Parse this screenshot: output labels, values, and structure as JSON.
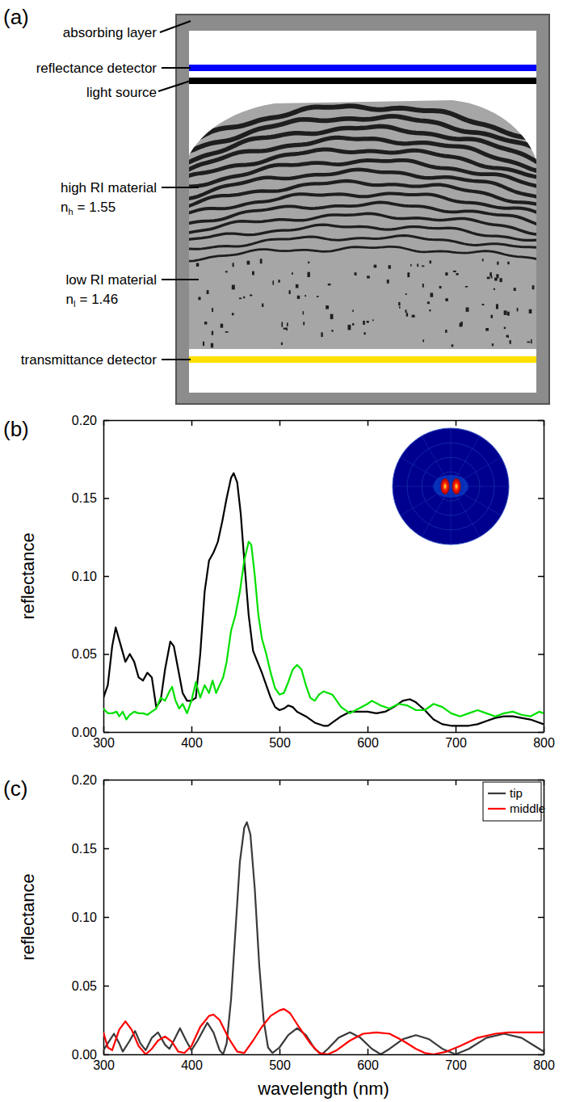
{
  "diagram": {
    "panel_label": "(a)",
    "labels": [
      {
        "text": "absorbing layer"
      },
      {
        "text": "reflectance detector"
      },
      {
        "text": "light source"
      },
      {
        "text": "high RI material",
        "formula": {
          "symbol": "n",
          "subscript": "h",
          "rest": "= 1.55"
        }
      },
      {
        "text": "low RI material",
        "formula": {
          "symbol": "n",
          "subscript": "l",
          "rest": "= 1.46"
        }
      },
      {
        "text": "transmittance detector"
      }
    ]
  },
  "chart_data": [
    {
      "type": "line",
      "panel_label": "(b)",
      "y_label": "reflectance",
      "xlim": [
        300,
        800
      ],
      "xticks": [
        300,
        400,
        500,
        600,
        700,
        800
      ],
      "ylim": [
        0,
        0.2
      ],
      "yticks": [
        {
          "value": 0,
          "label": "0.00"
        },
        {
          "value": 0.05,
          "label": "0.05"
        },
        {
          "value": 0.1,
          "label": "0.10"
        },
        {
          "value": 0.15,
          "label": "0.15"
        },
        {
          "value": 0.2,
          "label": "0.20"
        }
      ],
      "grid": false,
      "series": [
        {
          "color": "#000000",
          "x": [
            300,
            305,
            310,
            314,
            320,
            325,
            330,
            335,
            340,
            345,
            350,
            355,
            360,
            365,
            370,
            376,
            380,
            385,
            390,
            395,
            400,
            405,
            410,
            415,
            420,
            425,
            430,
            435,
            440,
            445,
            448,
            452,
            456,
            460,
            465,
            470,
            475,
            480,
            485,
            490,
            495,
            500,
            505,
            510,
            515,
            520,
            530,
            540,
            550,
            555,
            560,
            570,
            580,
            590,
            600,
            610,
            620,
            630,
            640,
            648,
            655,
            665,
            675,
            685,
            695,
            705,
            715,
            725,
            735,
            745,
            755,
            765,
            775,
            785,
            800
          ],
          "values": [
            0.022,
            0.03,
            0.055,
            0.067,
            0.055,
            0.045,
            0.05,
            0.045,
            0.035,
            0.033,
            0.038,
            0.035,
            0.016,
            0.02,
            0.04,
            0.058,
            0.055,
            0.04,
            0.025,
            0.02,
            0.02,
            0.022,
            0.05,
            0.09,
            0.11,
            0.115,
            0.122,
            0.135,
            0.15,
            0.163,
            0.166,
            0.16,
            0.14,
            0.11,
            0.075,
            0.052,
            0.045,
            0.038,
            0.03,
            0.022,
            0.016,
            0.014,
            0.015,
            0.017,
            0.016,
            0.013,
            0.01,
            0.006,
            0.004,
            0.004,
            0.006,
            0.01,
            0.013,
            0.013,
            0.013,
            0.012,
            0.013,
            0.016,
            0.02,
            0.021,
            0.019,
            0.014,
            0.008,
            0.005,
            0.004,
            0.004,
            0.004,
            0.005,
            0.007,
            0.009,
            0.01,
            0.01,
            0.009,
            0.008,
            0.005
          ]
        },
        {
          "color": "#00e000",
          "x": [
            300,
            305,
            310,
            315,
            318,
            322,
            326,
            330,
            335,
            340,
            345,
            350,
            355,
            360,
            365,
            370,
            375,
            378,
            382,
            386,
            390,
            395,
            400,
            405,
            410,
            415,
            420,
            424,
            428,
            432,
            436,
            440,
            445,
            450,
            455,
            460,
            465,
            468,
            472,
            476,
            480,
            485,
            490,
            495,
            500,
            505,
            510,
            515,
            520,
            525,
            530,
            535,
            540,
            545,
            550,
            555,
            560,
            570,
            580,
            590,
            600,
            605,
            615,
            625,
            635,
            645,
            655,
            665,
            675,
            685,
            695,
            705,
            715,
            725,
            735,
            745,
            755,
            765,
            775,
            785,
            795,
            800
          ],
          "values": [
            0.015,
            0.012,
            0.012,
            0.013,
            0.01,
            0.013,
            0.008,
            0.011,
            0.013,
            0.012,
            0.012,
            0.011,
            0.013,
            0.015,
            0.022,
            0.02,
            0.026,
            0.029,
            0.02,
            0.015,
            0.018,
            0.012,
            0.02,
            0.032,
            0.022,
            0.03,
            0.025,
            0.033,
            0.025,
            0.03,
            0.035,
            0.045,
            0.065,
            0.075,
            0.09,
            0.11,
            0.122,
            0.12,
            0.1,
            0.075,
            0.06,
            0.05,
            0.038,
            0.028,
            0.024,
            0.025,
            0.032,
            0.04,
            0.043,
            0.04,
            0.03,
            0.022,
            0.02,
            0.024,
            0.026,
            0.025,
            0.024,
            0.016,
            0.012,
            0.015,
            0.018,
            0.02,
            0.017,
            0.015,
            0.018,
            0.017,
            0.014,
            0.014,
            0.018,
            0.016,
            0.012,
            0.01,
            0.012,
            0.014,
            0.012,
            0.01,
            0.012,
            0.013,
            0.011,
            0.01,
            0.013,
            0.012
          ]
        }
      ]
    },
    {
      "type": "line",
      "panel_label": "(c)",
      "y_label": "reflectance",
      "x_label": "wavelength (nm)",
      "xlim": [
        300,
        800
      ],
      "xticks": [
        300,
        400,
        500,
        600,
        700,
        800
      ],
      "ylim": [
        0,
        0.2
      ],
      "yticks": [
        {
          "value": 0,
          "label": "0.00"
        },
        {
          "value": 0.05,
          "label": "0.05"
        },
        {
          "value": 0.1,
          "label": "0.10"
        },
        {
          "value": 0.15,
          "label": "0.15"
        },
        {
          "value": 0.2,
          "label": "0.20"
        }
      ],
      "grid": false,
      "legend": "top-right",
      "series": [
        {
          "name": "tip",
          "color": "#3a3a3a",
          "x": [
            300,
            305,
            312,
            318,
            322,
            330,
            336,
            342,
            348,
            355,
            362,
            370,
            375,
            380,
            387,
            394,
            400,
            407,
            418,
            425,
            432,
            436,
            440,
            445,
            450,
            455,
            460,
            463,
            467,
            472,
            477,
            482,
            487,
            492,
            500,
            510,
            520,
            530,
            540,
            548,
            555,
            567,
            580,
            592,
            605,
            615,
            625,
            640,
            655,
            670,
            685,
            700,
            715,
            735,
            755,
            775,
            790,
            800
          ],
          "values": [
            0.003,
            0.008,
            0.015,
            0.008,
            0.002,
            0.01,
            0.017,
            0.008,
            0.003,
            0.012,
            0.016,
            0.007,
            0.004,
            0.01,
            0.019,
            0.01,
            0.003,
            0.01,
            0.023,
            0.016,
            0.003,
            0.0,
            0.008,
            0.04,
            0.09,
            0.14,
            0.165,
            0.169,
            0.16,
            0.12,
            0.065,
            0.025,
            0.005,
            0.001,
            0.005,
            0.014,
            0.019,
            0.014,
            0.004,
            0.0,
            0.004,
            0.012,
            0.016,
            0.012,
            0.004,
            0.0,
            0.004,
            0.011,
            0.014,
            0.011,
            0.004,
            0.0,
            0.004,
            0.012,
            0.015,
            0.012,
            0.006,
            0.002
          ]
        },
        {
          "name": "middle",
          "color": "#ff0000",
          "x": [
            300,
            305,
            310,
            318,
            325,
            332,
            340,
            348,
            355,
            362,
            370,
            378,
            385,
            392,
            400,
            410,
            420,
            425,
            432,
            442,
            452,
            460,
            470,
            480,
            490,
            500,
            505,
            512,
            522,
            535,
            545,
            555,
            565,
            580,
            595,
            610,
            625,
            640,
            655,
            665,
            675,
            690,
            705,
            725,
            745,
            760,
            775,
            790,
            800
          ],
          "values": [
            0.016,
            0.005,
            0.003,
            0.018,
            0.024,
            0.018,
            0.006,
            0.0,
            0.004,
            0.01,
            0.013,
            0.009,
            0.002,
            0.001,
            0.006,
            0.02,
            0.028,
            0.029,
            0.025,
            0.012,
            0.002,
            0.001,
            0.01,
            0.02,
            0.028,
            0.032,
            0.033,
            0.03,
            0.02,
            0.008,
            0.001,
            0.0,
            0.003,
            0.01,
            0.015,
            0.016,
            0.015,
            0.01,
            0.004,
            0.001,
            0.0,
            0.002,
            0.006,
            0.012,
            0.015,
            0.016,
            0.016,
            0.016,
            0.016
          ]
        }
      ]
    }
  ]
}
